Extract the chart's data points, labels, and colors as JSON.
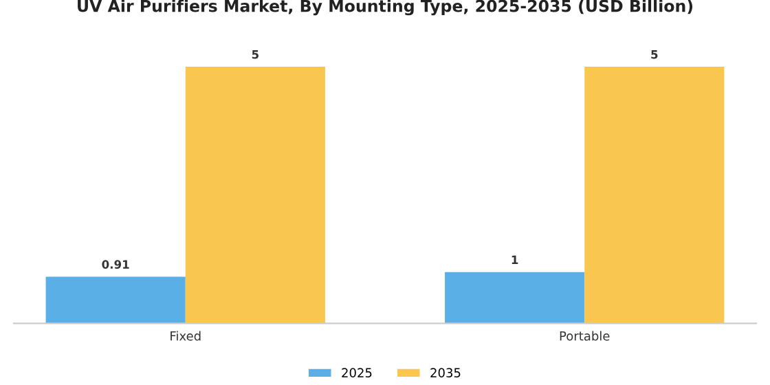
{
  "chart_data": {
    "type": "bar",
    "title": "UV Air Purifiers Market, By Mounting Type, 2025-2035 (USD Billion)",
    "categories": [
      "Fixed",
      "Portable"
    ],
    "series": [
      {
        "name": "2025",
        "color": "#5aafe6",
        "values": [
          0.91,
          1
        ]
      },
      {
        "name": "2035",
        "color": "#f9c74f",
        "values": [
          5,
          5
        ]
      }
    ],
    "data_labels": true,
    "legend": "bottom",
    "grid": false
  }
}
